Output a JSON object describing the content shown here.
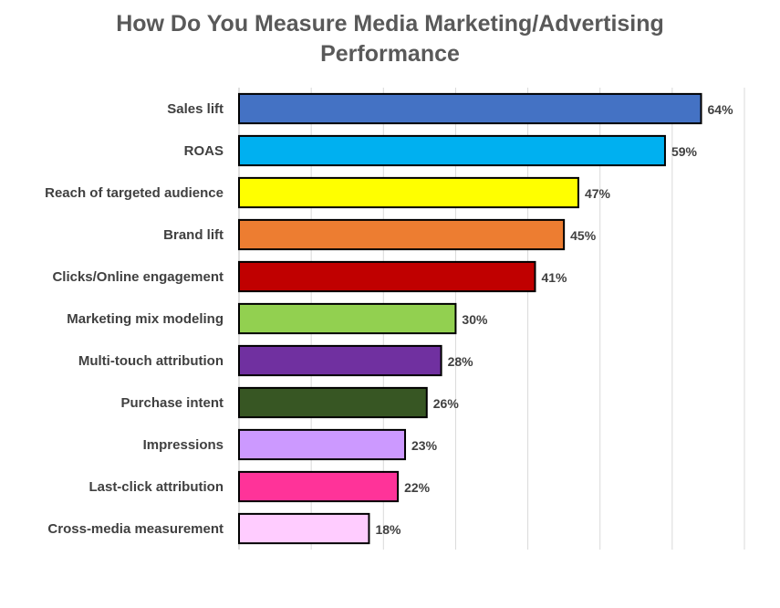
{
  "chart_data": {
    "type": "bar",
    "orientation": "horizontal",
    "title_lines": [
      "How Do You Measure Media Marketing/Advertising",
      "Performance"
    ],
    "categories": [
      "Sales lift",
      "ROAS",
      "Reach of targeted audience",
      "Brand lift",
      "Clicks/Online engagement",
      "Marketing mix modeling",
      "Multi-touch attribution",
      "Purchase intent",
      "Impressions",
      "Last-click attribution",
      "Cross-media measurement"
    ],
    "values": [
      64,
      59,
      47,
      45,
      41,
      30,
      28,
      26,
      23,
      22,
      18
    ],
    "value_labels": [
      "64%",
      "59%",
      "47%",
      "45%",
      "41%",
      "30%",
      "28%",
      "26%",
      "23%",
      "22%",
      "18%"
    ],
    "colors": [
      "#4472c4",
      "#00b0f0",
      "#ffff00",
      "#ed7d31",
      "#c00000",
      "#92d050",
      "#7030a0",
      "#375623",
      "#cc99ff",
      "#ff3399",
      "#ffccff"
    ],
    "xlim": [
      0,
      70
    ],
    "x_gridlines": [
      10,
      20,
      30,
      40,
      50,
      60,
      70
    ],
    "grid": true,
    "legend": "none"
  }
}
